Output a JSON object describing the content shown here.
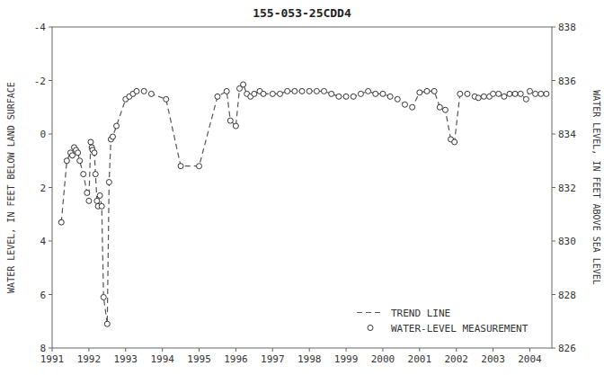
{
  "chart_data": {
    "type": "line",
    "title": "155-053-25CDD4",
    "ylabel": "WATER LEVEL, IN FEET BELOW LAND SURFACE",
    "y2label": "WATER LEVEL, IN FEET ABOVE SEA LEVEL",
    "xlim": [
      1991.0,
      2004.6
    ],
    "xticks": [
      1991,
      1992,
      1993,
      1994,
      1995,
      1996,
      1997,
      1998,
      1999,
      2000,
      2001,
      2002,
      2003,
      2004
    ],
    "ylim": [
      8,
      -4
    ],
    "yticks": [
      8,
      6,
      4,
      2,
      0,
      -2,
      -4
    ],
    "y2lim": [
      826,
      838
    ],
    "y2ticks": [
      826,
      828,
      830,
      832,
      834,
      836,
      838
    ],
    "grid": false,
    "legend": "lower right",
    "series": [
      {
        "name": "TREND LINE",
        "type": "line",
        "line_style": "dashed",
        "color": "#555555",
        "x": [
          1991.25,
          1991.4,
          1991.5,
          1991.55,
          1991.6,
          1991.65,
          1991.7,
          1991.75,
          1991.85,
          1991.95,
          1992.0,
          1992.05,
          1992.08,
          1992.1,
          1992.15,
          1992.18,
          1992.22,
          1992.25,
          1992.3,
          1992.35,
          1992.4,
          1992.5,
          1992.55,
          1992.6,
          1992.65,
          1992.75,
          1993.0,
          1993.1,
          1993.2,
          1993.3,
          1993.5,
          1993.7,
          1994.1,
          1994.5,
          1995.0,
          1995.5,
          1995.75,
          1995.85,
          1996.0,
          1996.1,
          1996.2,
          1996.3,
          1996.4,
          1996.5,
          1996.65,
          1996.75,
          1997.0,
          1997.2,
          1997.4,
          1997.6,
          1997.8,
          1998.0,
          1998.2,
          1998.4,
          1998.6,
          1998.8,
          1999.0,
          1999.2,
          1999.4,
          1999.6,
          1999.8,
          2000.0,
          2000.2,
          2000.4,
          2000.6,
          2000.8,
          2001.0,
          2001.2,
          2001.4,
          2001.55,
          2001.7,
          2001.85,
          2001.95,
          2002.1,
          2002.3,
          2002.5,
          2002.6,
          2002.75,
          2002.9,
          2003.0,
          2003.15,
          2003.3,
          2003.45,
          2003.6,
          2003.75,
          2003.9,
          2004.0,
          2004.15,
          2004.3,
          2004.45
        ],
        "values": [
          3.3,
          1.0,
          0.7,
          0.8,
          0.5,
          0.6,
          0.7,
          1.0,
          1.5,
          2.2,
          2.5,
          0.3,
          0.5,
          0.6,
          0.7,
          1.5,
          2.5,
          2.7,
          2.3,
          2.7,
          6.1,
          7.1,
          1.8,
          0.2,
          0.1,
          -0.3,
          -1.3,
          -1.4,
          -1.5,
          -1.6,
          -1.6,
          -1.5,
          -1.3,
          1.2,
          1.2,
          -1.4,
          -1.6,
          -0.5,
          -0.3,
          -1.7,
          -1.85,
          -1.5,
          -1.4,
          -1.5,
          -1.6,
          -1.5,
          -1.5,
          -1.5,
          -1.6,
          -1.6,
          -1.6,
          -1.6,
          -1.6,
          -1.6,
          -1.5,
          -1.4,
          -1.4,
          -1.4,
          -1.5,
          -1.6,
          -1.5,
          -1.5,
          -1.4,
          -1.3,
          -1.1,
          -1.0,
          -1.55,
          -1.6,
          -1.6,
          -1.0,
          -0.9,
          0.2,
          0.3,
          -1.5,
          -1.5,
          -1.4,
          -1.35,
          -1.4,
          -1.4,
          -1.5,
          -1.5,
          -1.4,
          -1.5,
          -1.5,
          -1.5,
          -1.3,
          -1.6,
          -1.5,
          -1.5,
          -1.5
        ]
      },
      {
        "name": "WATER-LEVEL MEASUREMENT",
        "type": "scatter",
        "marker": "circle",
        "color": "#333333",
        "x": [
          1991.25,
          1991.4,
          1991.5,
          1991.55,
          1991.6,
          1991.65,
          1991.7,
          1991.75,
          1991.85,
          1991.95,
          1992.0,
          1992.05,
          1992.08,
          1992.1,
          1992.15,
          1992.18,
          1992.22,
          1992.25,
          1992.3,
          1992.35,
          1992.4,
          1992.5,
          1992.55,
          1992.6,
          1992.65,
          1992.75,
          1993.0,
          1993.1,
          1993.2,
          1993.3,
          1993.5,
          1993.7,
          1994.1,
          1994.5,
          1995.0,
          1995.5,
          1995.75,
          1995.85,
          1996.0,
          1996.1,
          1996.2,
          1996.3,
          1996.4,
          1996.5,
          1996.65,
          1996.75,
          1997.0,
          1997.2,
          1997.4,
          1997.6,
          1997.8,
          1998.0,
          1998.2,
          1998.4,
          1998.6,
          1998.8,
          1999.0,
          1999.2,
          1999.4,
          1999.6,
          1999.8,
          2000.0,
          2000.2,
          2000.4,
          2000.6,
          2000.8,
          2001.0,
          2001.2,
          2001.4,
          2001.55,
          2001.7,
          2001.85,
          2001.95,
          2002.1,
          2002.3,
          2002.5,
          2002.6,
          2002.75,
          2002.9,
          2003.0,
          2003.15,
          2003.3,
          2003.45,
          2003.6,
          2003.75,
          2003.9,
          2004.0,
          2004.15,
          2004.3,
          2004.45
        ],
        "values": [
          3.3,
          1.0,
          0.7,
          0.8,
          0.5,
          0.6,
          0.7,
          1.0,
          1.5,
          2.2,
          2.5,
          0.3,
          0.5,
          0.6,
          0.7,
          1.5,
          2.5,
          2.7,
          2.3,
          2.7,
          6.1,
          7.1,
          1.8,
          0.2,
          0.1,
          -0.3,
          -1.3,
          -1.4,
          -1.5,
          -1.6,
          -1.6,
          -1.5,
          -1.3,
          1.2,
          1.2,
          -1.4,
          -1.6,
          -0.5,
          -0.3,
          -1.7,
          -1.85,
          -1.5,
          -1.4,
          -1.5,
          -1.6,
          -1.5,
          -1.5,
          -1.5,
          -1.6,
          -1.6,
          -1.6,
          -1.6,
          -1.6,
          -1.6,
          -1.5,
          -1.4,
          -1.4,
          -1.4,
          -1.5,
          -1.6,
          -1.5,
          -1.5,
          -1.4,
          -1.3,
          -1.1,
          -1.0,
          -1.55,
          -1.6,
          -1.6,
          -1.0,
          -0.9,
          0.2,
          0.3,
          -1.5,
          -1.5,
          -1.4,
          -1.35,
          -1.4,
          -1.4,
          -1.5,
          -1.5,
          -1.4,
          -1.5,
          -1.5,
          -1.5,
          -1.3,
          -1.6,
          -1.5,
          -1.5,
          -1.5
        ]
      }
    ]
  }
}
